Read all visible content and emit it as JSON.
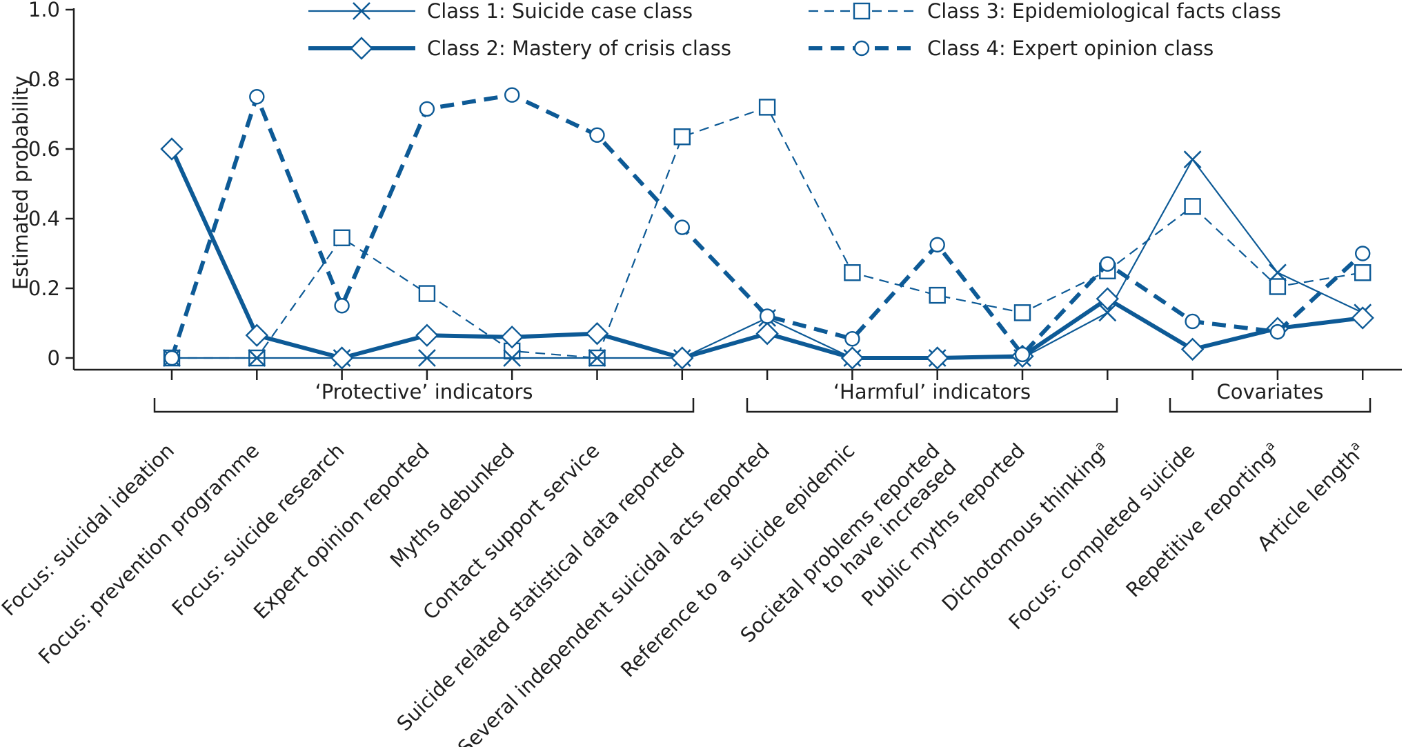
{
  "colors": {
    "series": "#0d5a96",
    "axis": "#1f1f1f",
    "text": "#1f1f1f"
  },
  "chart_data": {
    "type": "line",
    "title": "",
    "xlabel": "",
    "ylabel": "Estimated probability",
    "ylim": [
      0,
      1.0
    ],
    "yticks": [
      {
        "value": 0,
        "label": "0"
      },
      {
        "value": 0.2,
        "label": "0.2"
      },
      {
        "value": 0.4,
        "label": "0.4"
      },
      {
        "value": 0.6,
        "label": "0.6"
      },
      {
        "value": 0.8,
        "label": "0.8"
      },
      {
        "value": 1.0,
        "label": "1.0"
      }
    ],
    "grid": false,
    "legend_position": "top",
    "categories": [
      {
        "text": "Focus: suicidal ideation",
        "sup": ""
      },
      {
        "text": "Focus: prevention programme",
        "sup": ""
      },
      {
        "text": "Focus: suicide research",
        "sup": ""
      },
      {
        "text": "Expert opinion reported",
        "sup": ""
      },
      {
        "text": "Myths debunked",
        "sup": ""
      },
      {
        "text": "Contact support service",
        "sup": ""
      },
      {
        "text": "Suicide related statistical data reported",
        "sup": ""
      },
      {
        "text": "Several independent suicidal acts reported",
        "sup": ""
      },
      {
        "text": "Reference to a suicide epidemic",
        "sup": ""
      },
      {
        "text": "Societal problems reported\nto have increased",
        "sup": ""
      },
      {
        "text": "Public myths reported",
        "sup": ""
      },
      {
        "text": "Dichotomous thinking",
        "sup": "a"
      },
      {
        "text": "Focus: completed suicide",
        "sup": ""
      },
      {
        "text": "Repetitive reporting",
        "sup": "a"
      },
      {
        "text": "Article length",
        "sup": "a"
      }
    ],
    "groups": [
      {
        "label": "‘Protective’ indicators",
        "from": 0,
        "to": 6
      },
      {
        "label": "‘Harmful’ indicators",
        "from": 7,
        "to": 11
      },
      {
        "label": "Covariates",
        "from": 12,
        "to": 14
      }
    ],
    "series": [
      {
        "name": "Class 1: Suicide case class",
        "marker": "x",
        "style": "thin-solid",
        "values": [
          0.0,
          0.0,
          0.0,
          0.0,
          0.0,
          0.0,
          0.0,
          0.115,
          0.0,
          0.0,
          0.0,
          0.13,
          0.57,
          0.245,
          0.13
        ]
      },
      {
        "name": "Class 2: Mastery of crisis class",
        "marker": "diamond",
        "style": "thick-solid",
        "values": [
          0.6,
          0.065,
          0.0,
          0.065,
          0.06,
          0.07,
          0.0,
          0.07,
          0.0,
          0.0,
          0.005,
          0.17,
          0.025,
          0.085,
          0.115
        ]
      },
      {
        "name": "Class 3: Epidemiological facts class",
        "marker": "square",
        "style": "thin-dashed",
        "values": [
          0.0,
          0.0,
          0.345,
          0.185,
          0.02,
          0.0,
          0.635,
          0.72,
          0.245,
          0.18,
          0.13,
          0.25,
          0.435,
          0.205,
          0.245
        ]
      },
      {
        "name": "Class 4: Expert opinion class",
        "marker": "circle",
        "style": "thick-dashed",
        "values": [
          0.0,
          0.75,
          0.15,
          0.715,
          0.755,
          0.64,
          0.375,
          0.12,
          0.055,
          0.325,
          0.01,
          0.27,
          0.105,
          0.075,
          0.3
        ]
      }
    ]
  }
}
